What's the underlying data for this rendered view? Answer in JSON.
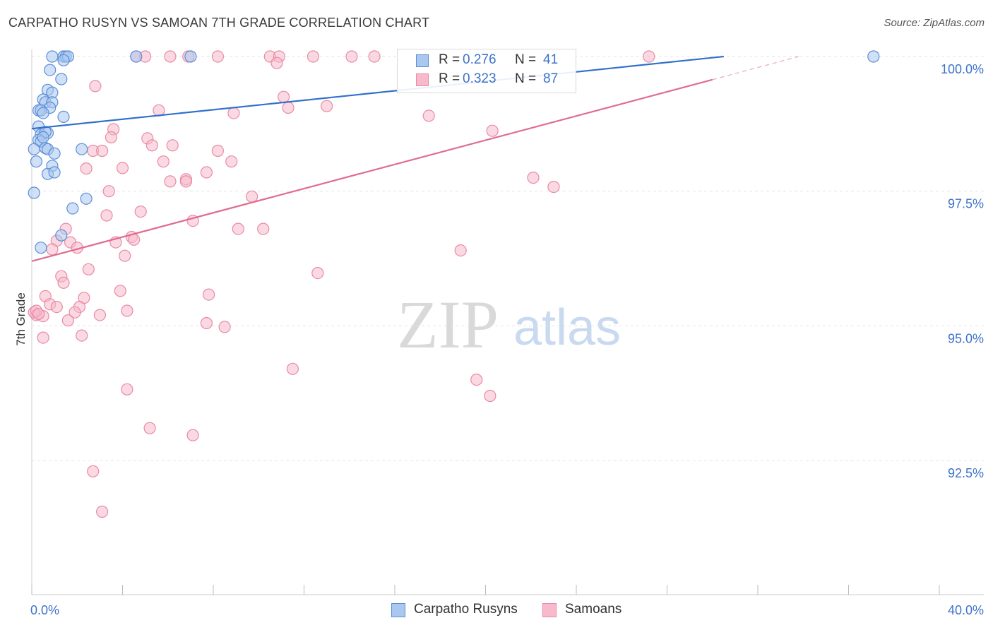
{
  "chart_data": {
    "type": "scatter",
    "title": "CARPATHO RUSYN VS SAMOAN 7TH GRADE CORRELATION CHART",
    "source": "Source: ZipAtlas.com",
    "xlabel": "",
    "ylabel": "7th Grade",
    "xlim": [
      0,
      40
    ],
    "ylim": [
      90.0,
      100.5
    ],
    "x_tick_labels": [
      "0.0%",
      "40.0%"
    ],
    "y_ticks": [
      92.5,
      95.0,
      97.5,
      100.0
    ],
    "y_tick_labels": [
      "92.5%",
      "95.0%",
      "97.5%",
      "100.0%"
    ],
    "watermark": {
      "zip": "ZIP",
      "atlas": "atlas"
    },
    "legend": {
      "rows": [
        {
          "r_label": "R =",
          "r_value": "0.276",
          "n_label": "N =",
          "n_value": "41"
        },
        {
          "r_label": "R =",
          "r_value": "0.323",
          "n_label": "N =",
          "n_value": "87"
        }
      ]
    },
    "series": [
      {
        "name": "Carpatho Rusyns",
        "fill": "#a9c7ef",
        "stroke": "#5b8fd6",
        "line_color": "#3070cc",
        "trend": {
          "x0": 0.0,
          "y0": 98.66,
          "x1": 30.5,
          "y1": 100.0
        },
        "points": [
          [
            0.9,
            100.0
          ],
          [
            1.4,
            100.0
          ],
          [
            1.5,
            100.0
          ],
          [
            1.6,
            100.0
          ],
          [
            4.6,
            100.0
          ],
          [
            7.0,
            100.0
          ],
          [
            37.1,
            100.0
          ],
          [
            1.4,
            99.93
          ],
          [
            0.8,
            99.75
          ],
          [
            1.3,
            99.58
          ],
          [
            0.7,
            99.38
          ],
          [
            0.9,
            99.33
          ],
          [
            0.5,
            99.2
          ],
          [
            0.6,
            99.15
          ],
          [
            0.9,
            99.15
          ],
          [
            0.8,
            99.05
          ],
          [
            0.3,
            99.0
          ],
          [
            0.4,
            99.0
          ],
          [
            0.5,
            98.95
          ],
          [
            1.4,
            98.88
          ],
          [
            0.3,
            98.7
          ],
          [
            0.4,
            98.55
          ],
          [
            0.7,
            98.58
          ],
          [
            0.6,
            98.6
          ],
          [
            0.3,
            98.45
          ],
          [
            0.4,
            98.42
          ],
          [
            0.6,
            98.3
          ],
          [
            0.7,
            98.28
          ],
          [
            0.1,
            98.28
          ],
          [
            2.2,
            98.28
          ],
          [
            1.0,
            98.2
          ],
          [
            0.2,
            98.05
          ],
          [
            0.9,
            97.97
          ],
          [
            0.7,
            97.82
          ],
          [
            1.0,
            97.85
          ],
          [
            0.1,
            97.47
          ],
          [
            2.4,
            97.36
          ],
          [
            1.8,
            97.18
          ],
          [
            1.3,
            96.68
          ],
          [
            0.4,
            96.45
          ],
          [
            0.5,
            98.5
          ]
        ]
      },
      {
        "name": "Samoans",
        "fill": "#f7b9cb",
        "stroke": "#e88aa6",
        "line_color": "#e06c93",
        "trend": {
          "x0": 0.0,
          "y0": 96.2,
          "x1": 30.0,
          "y1": 99.57
        },
        "trend_dash": {
          "x0": 30.0,
          "y0": 99.57,
          "x1": 33.8,
          "y1": 100.0
        },
        "points": [
          [
            4.6,
            100.0
          ],
          [
            5.0,
            100.0
          ],
          [
            6.1,
            100.0
          ],
          [
            6.9,
            100.0
          ],
          [
            8.2,
            100.0
          ],
          [
            10.5,
            100.0
          ],
          [
            10.9,
            100.0
          ],
          [
            12.4,
            100.0
          ],
          [
            14.1,
            100.0
          ],
          [
            15.1,
            100.0
          ],
          [
            27.2,
            100.0
          ],
          [
            10.8,
            99.88
          ],
          [
            2.8,
            99.45
          ],
          [
            11.1,
            99.25
          ],
          [
            11.3,
            99.05
          ],
          [
            13.0,
            99.08
          ],
          [
            5.6,
            99.0
          ],
          [
            8.9,
            98.95
          ],
          [
            17.5,
            98.9
          ],
          [
            3.6,
            98.65
          ],
          [
            20.3,
            98.62
          ],
          [
            5.1,
            98.48
          ],
          [
            3.5,
            98.5
          ],
          [
            5.3,
            98.35
          ],
          [
            6.2,
            98.35
          ],
          [
            2.7,
            98.25
          ],
          [
            3.1,
            98.25
          ],
          [
            8.2,
            98.25
          ],
          [
            8.8,
            98.05
          ],
          [
            5.8,
            98.05
          ],
          [
            4.0,
            97.93
          ],
          [
            2.4,
            97.92
          ],
          [
            7.7,
            97.85
          ],
          [
            6.8,
            97.72
          ],
          [
            6.1,
            97.68
          ],
          [
            6.8,
            97.68
          ],
          [
            22.1,
            97.75
          ],
          [
            23.0,
            97.58
          ],
          [
            3.4,
            97.5
          ],
          [
            9.7,
            97.4
          ],
          [
            4.8,
            97.12
          ],
          [
            3.3,
            97.05
          ],
          [
            7.1,
            96.95
          ],
          [
            9.1,
            96.8
          ],
          [
            10.2,
            96.8
          ],
          [
            1.5,
            96.8
          ],
          [
            4.4,
            96.65
          ],
          [
            4.5,
            96.6
          ],
          [
            1.1,
            96.58
          ],
          [
            1.7,
            96.55
          ],
          [
            3.7,
            96.55
          ],
          [
            2.0,
            96.45
          ],
          [
            0.9,
            96.42
          ],
          [
            4.1,
            96.3
          ],
          [
            18.9,
            96.4
          ],
          [
            2.5,
            96.05
          ],
          [
            12.6,
            95.98
          ],
          [
            1.3,
            95.92
          ],
          [
            1.4,
            95.8
          ],
          [
            3.9,
            95.65
          ],
          [
            7.8,
            95.58
          ],
          [
            0.6,
            95.55
          ],
          [
            2.3,
            95.52
          ],
          [
            0.8,
            95.4
          ],
          [
            2.1,
            95.35
          ],
          [
            1.1,
            95.35
          ],
          [
            4.2,
            95.28
          ],
          [
            1.9,
            95.25
          ],
          [
            3.0,
            95.2
          ],
          [
            0.2,
            95.2
          ],
          [
            0.5,
            95.18
          ],
          [
            0.1,
            95.25
          ],
          [
            1.6,
            95.1
          ],
          [
            7.7,
            95.05
          ],
          [
            8.5,
            94.98
          ],
          [
            2.2,
            94.82
          ],
          [
            0.5,
            94.78
          ],
          [
            11.5,
            94.2
          ],
          [
            19.6,
            94.0
          ],
          [
            20.2,
            93.7
          ],
          [
            4.2,
            93.82
          ],
          [
            5.2,
            93.1
          ],
          [
            7.1,
            92.97
          ],
          [
            2.7,
            92.3
          ],
          [
            3.1,
            91.55
          ],
          [
            0.2,
            95.28
          ],
          [
            0.3,
            95.22
          ]
        ]
      }
    ]
  }
}
